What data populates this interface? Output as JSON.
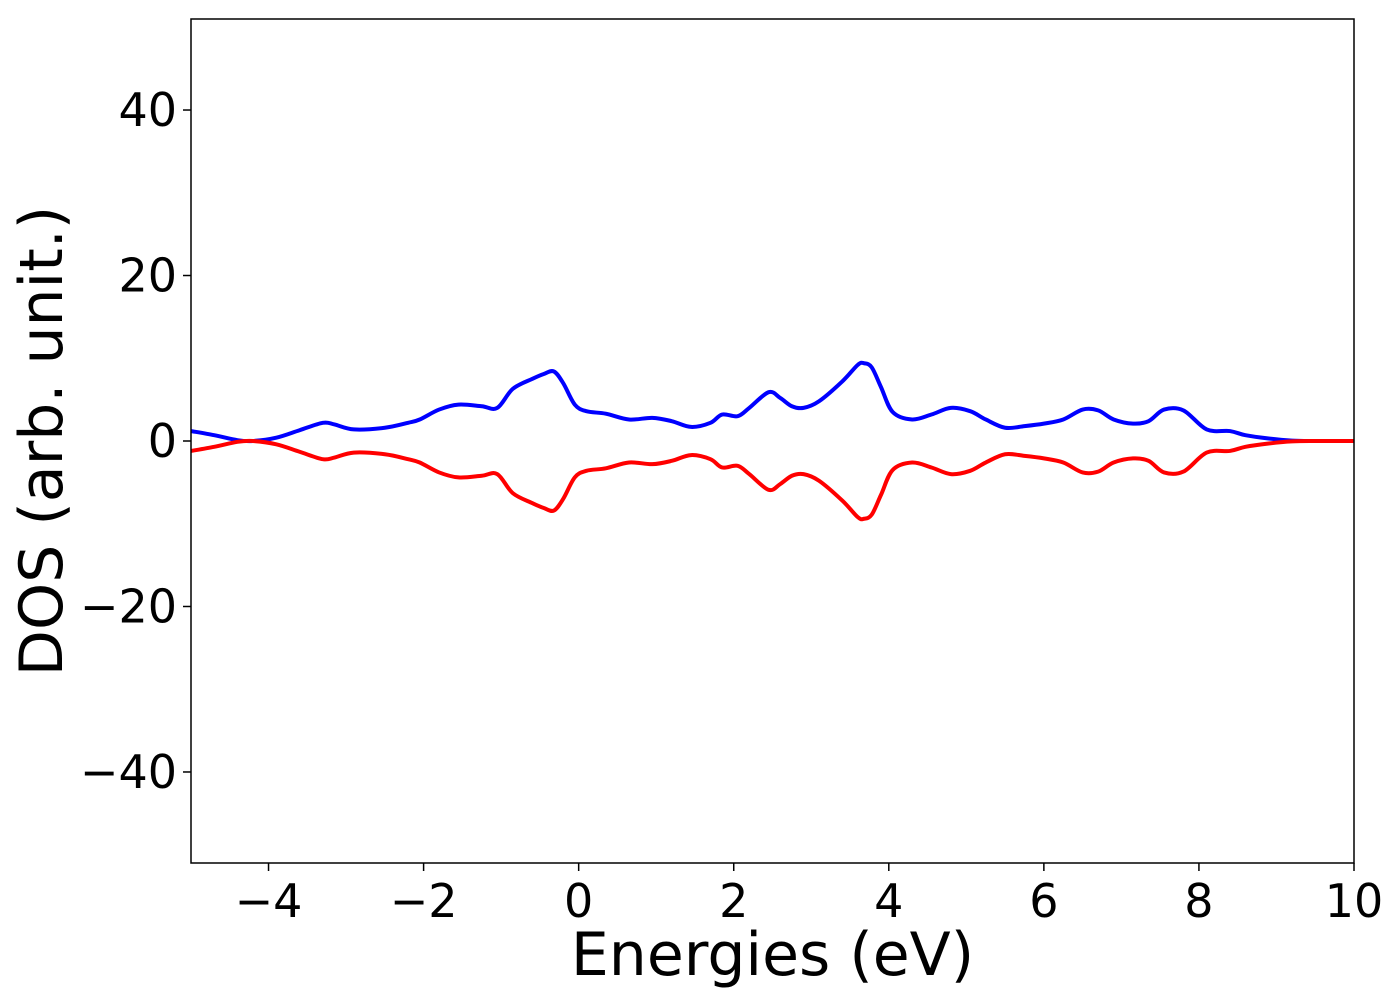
{
  "chart_data": {
    "type": "line",
    "title": "",
    "xlabel": "Energies (eV)",
    "ylabel": "DOS (arb. unit.)",
    "xlim": [
      -5,
      10
    ],
    "ylim": [
      -51,
      51
    ],
    "xticks": [
      -4,
      -2,
      0,
      2,
      4,
      6,
      8,
      10
    ],
    "xtick_labels": [
      "−4",
      "−2",
      "0",
      "2",
      "4",
      "6",
      "8",
      "10"
    ],
    "yticks": [
      -40,
      -20,
      0,
      20,
      40
    ],
    "ytick_labels": [
      "−40",
      "−20",
      "0",
      "20",
      "40"
    ],
    "grid": false,
    "legend": "none",
    "series": [
      {
        "color": "#0000ff",
        "x": [
          -5.0,
          -4.7,
          -4.4,
          -4.2,
          -3.9,
          -3.6,
          -3.3,
          -3.15,
          -2.9,
          -2.5,
          -2.2,
          -2.05,
          -1.8,
          -1.55,
          -1.25,
          -1.05,
          -0.85,
          -0.6,
          -0.45,
          -0.32,
          -0.2,
          -0.05,
          0.1,
          0.35,
          0.65,
          0.95,
          1.2,
          1.45,
          1.7,
          1.85,
          2.05,
          2.2,
          2.45,
          2.6,
          2.75,
          2.9,
          3.1,
          3.4,
          3.6,
          3.68,
          3.78,
          3.9,
          4.05,
          4.3,
          4.55,
          4.8,
          5.05,
          5.25,
          5.5,
          5.75,
          6.0,
          6.25,
          6.5,
          6.7,
          6.9,
          7.15,
          7.35,
          7.55,
          7.8,
          8.1,
          8.4,
          8.6,
          8.9,
          9.2,
          9.5,
          10.0
        ],
        "y": [
          1.2,
          0.7,
          0.1,
          0.0,
          0.4,
          1.3,
          2.2,
          2.0,
          1.4,
          1.6,
          2.2,
          2.6,
          3.8,
          4.4,
          4.2,
          4.0,
          6.3,
          7.5,
          8.1,
          8.4,
          7.0,
          4.4,
          3.6,
          3.3,
          2.6,
          2.8,
          2.4,
          1.7,
          2.2,
          3.2,
          3.0,
          4.0,
          5.9,
          5.2,
          4.2,
          4.0,
          4.8,
          7.2,
          9.2,
          9.4,
          8.9,
          6.5,
          3.5,
          2.6,
          3.2,
          4.0,
          3.6,
          2.6,
          1.6,
          1.8,
          2.1,
          2.6,
          3.8,
          3.7,
          2.6,
          2.1,
          2.4,
          3.8,
          3.7,
          1.4,
          1.2,
          0.7,
          0.3,
          0.05,
          0.0,
          0.0
        ]
      },
      {
        "color": "#ff0000",
        "x": [
          -5.0,
          -4.7,
          -4.4,
          -4.2,
          -3.9,
          -3.6,
          -3.3,
          -3.15,
          -2.9,
          -2.5,
          -2.2,
          -2.05,
          -1.8,
          -1.55,
          -1.25,
          -1.05,
          -0.85,
          -0.6,
          -0.45,
          -0.32,
          -0.2,
          -0.05,
          0.1,
          0.35,
          0.65,
          0.95,
          1.2,
          1.45,
          1.7,
          1.85,
          2.05,
          2.2,
          2.45,
          2.6,
          2.75,
          2.9,
          3.1,
          3.4,
          3.6,
          3.68,
          3.78,
          3.9,
          4.05,
          4.3,
          4.55,
          4.8,
          5.05,
          5.25,
          5.5,
          5.75,
          6.0,
          6.25,
          6.5,
          6.7,
          6.9,
          7.15,
          7.35,
          7.55,
          7.8,
          8.1,
          8.4,
          8.6,
          8.9,
          9.2,
          9.5,
          10.0
        ],
        "y": [
          -1.2,
          -0.7,
          -0.1,
          0.0,
          -0.4,
          -1.3,
          -2.2,
          -2.0,
          -1.4,
          -1.6,
          -2.2,
          -2.6,
          -3.8,
          -4.4,
          -4.2,
          -4.0,
          -6.3,
          -7.5,
          -8.1,
          -8.4,
          -7.0,
          -4.4,
          -3.6,
          -3.3,
          -2.6,
          -2.8,
          -2.4,
          -1.7,
          -2.2,
          -3.2,
          -3.0,
          -4.0,
          -5.9,
          -5.2,
          -4.2,
          -4.0,
          -4.8,
          -7.2,
          -9.2,
          -9.4,
          -8.9,
          -6.5,
          -3.5,
          -2.6,
          -3.2,
          -4.0,
          -3.6,
          -2.6,
          -1.6,
          -1.8,
          -2.1,
          -2.6,
          -3.8,
          -3.7,
          -2.6,
          -2.1,
          -2.4,
          -3.8,
          -3.7,
          -1.4,
          -1.2,
          -0.7,
          -0.3,
          -0.05,
          0.0,
          0.0
        ]
      }
    ]
  }
}
